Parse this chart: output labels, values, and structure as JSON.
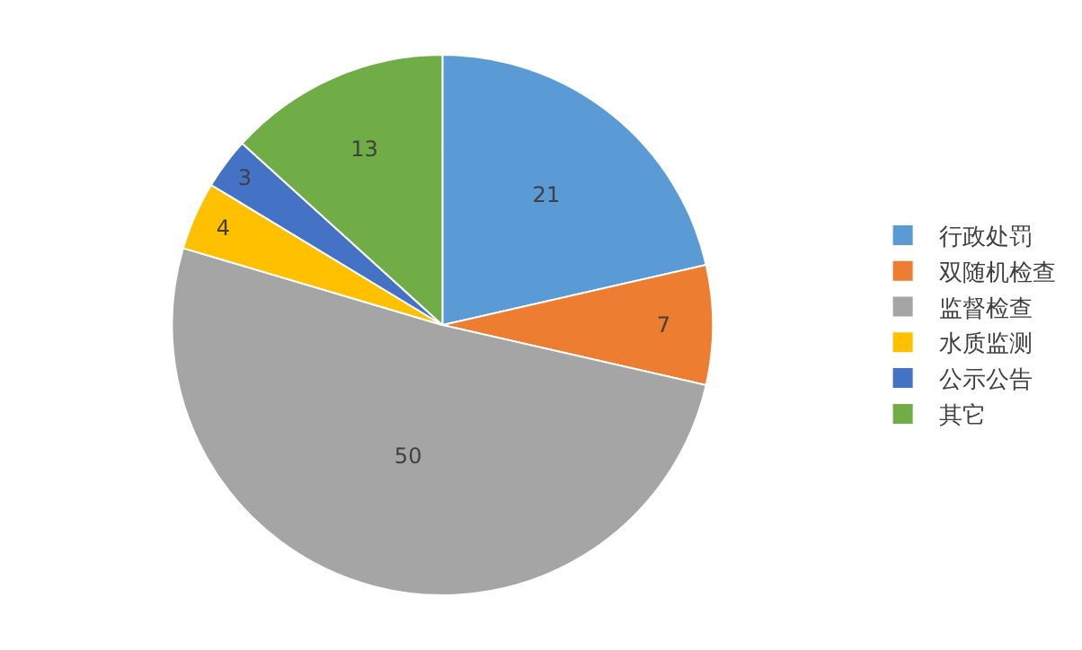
{
  "chart_data": {
    "type": "pie",
    "categories": [
      "行政处罚",
      "双随机检查",
      "监督检查",
      "水质监测",
      "公示公告",
      "其它"
    ],
    "values": [
      21,
      7,
      50,
      4,
      3,
      13
    ],
    "colors": [
      "#5b9bd5",
      "#ed7d31",
      "#a5a5a5",
      "#ffc000",
      "#4472c4",
      "#70ad47"
    ],
    "data_labels": true,
    "legend": "right"
  }
}
